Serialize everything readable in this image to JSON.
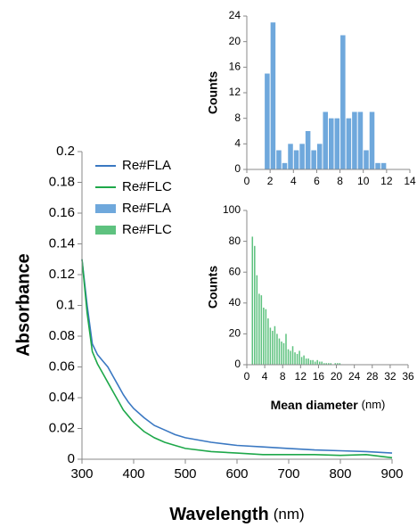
{
  "chart_data": [
    {
      "type": "line",
      "y_label": "Absorbance",
      "x_label": "Wavelength",
      "x_unit": "(nm)",
      "x": [
        300,
        310,
        320,
        330,
        340,
        350,
        360,
        370,
        380,
        390,
        400,
        420,
        440,
        460,
        480,
        500,
        550,
        600,
        650,
        700,
        750,
        800,
        850,
        900
      ],
      "series": [
        {
          "name": "Re#FLA",
          "color": "#3a78c2",
          "values": [
            0.13,
            0.1,
            0.075,
            0.068,
            0.064,
            0.06,
            0.054,
            0.048,
            0.042,
            0.037,
            0.033,
            0.027,
            0.022,
            0.019,
            0.016,
            0.014,
            0.011,
            0.009,
            0.008,
            0.007,
            0.006,
            0.0055,
            0.005,
            0.004
          ]
        },
        {
          "name": "Re#FLC",
          "color": "#1ea84a",
          "values": [
            0.13,
            0.095,
            0.07,
            0.062,
            0.056,
            0.05,
            0.044,
            0.038,
            0.032,
            0.028,
            0.024,
            0.018,
            0.014,
            0.011,
            0.009,
            0.007,
            0.005,
            0.004,
            0.003,
            0.003,
            0.003,
            0.0025,
            0.003,
            0.001
          ]
        }
      ],
      "xlim": [
        300,
        900
      ],
      "xticks": [
        300,
        400,
        500,
        600,
        700,
        800,
        900
      ],
      "ylim": [
        0,
        0.2
      ],
      "yticks": [
        0,
        0.02,
        0.04,
        0.06,
        0.08,
        0.1,
        0.12,
        0.14,
        0.16,
        0.18,
        0.2
      ]
    },
    {
      "type": "histogram",
      "y_label": "Counts",
      "bins": [
        1.5,
        2,
        2.5,
        3,
        3.5,
        4,
        4.5,
        5,
        5.5,
        6,
        6.5,
        7,
        7.5,
        8,
        8.5,
        9,
        9.5,
        10,
        10.5,
        11,
        11.5,
        12
      ],
      "series": [
        {
          "name": "Re#FLA",
          "color": "#6fa8dc",
          "values": [
            15,
            23,
            3,
            1,
            4,
            3,
            4,
            6,
            3,
            4,
            9,
            8,
            8,
            21,
            8,
            9,
            9,
            3,
            9,
            1,
            1
          ]
        }
      ],
      "xlim": [
        0,
        14
      ],
      "xticks": [
        0,
        2,
        4,
        6,
        8,
        10,
        12,
        14
      ],
      "ylim": [
        0,
        24
      ],
      "yticks": [
        0,
        4,
        8,
        12,
        16,
        20,
        24
      ]
    },
    {
      "type": "histogram",
      "y_label": "Counts",
      "x_label": "Mean diameter",
      "x_unit": "(nm)",
      "bins": [
        1,
        1.5,
        2,
        2.5,
        3,
        3.5,
        4,
        4.5,
        5,
        5.5,
        6,
        6.5,
        7,
        7.5,
        8,
        8.5,
        9,
        9.5,
        10,
        10.5,
        11,
        11.5,
        12,
        12.5,
        13,
        13.5,
        14,
        14.5,
        15,
        15.5,
        16,
        16.5,
        17,
        17.5,
        18,
        18.5,
        19,
        19.5,
        20,
        20.5,
        21
      ],
      "series": [
        {
          "name": "Re#FLC",
          "color": "#5ec27f",
          "values": [
            83,
            77,
            58,
            46,
            45,
            37,
            36,
            30,
            24,
            22,
            25,
            20,
            17,
            15,
            14,
            20,
            10,
            9,
            12,
            8,
            7,
            9,
            5,
            6,
            4,
            4,
            3,
            3,
            2,
            3,
            2,
            2,
            1,
            1,
            1,
            1,
            0,
            1,
            1,
            1
          ]
        }
      ],
      "xlim": [
        0,
        36
      ],
      "xticks": [
        0,
        4,
        8,
        12,
        16,
        20,
        24,
        28,
        32,
        36
      ],
      "ylim": [
        0,
        100
      ],
      "yticks": [
        0,
        20,
        40,
        60,
        80,
        100
      ]
    }
  ]
}
